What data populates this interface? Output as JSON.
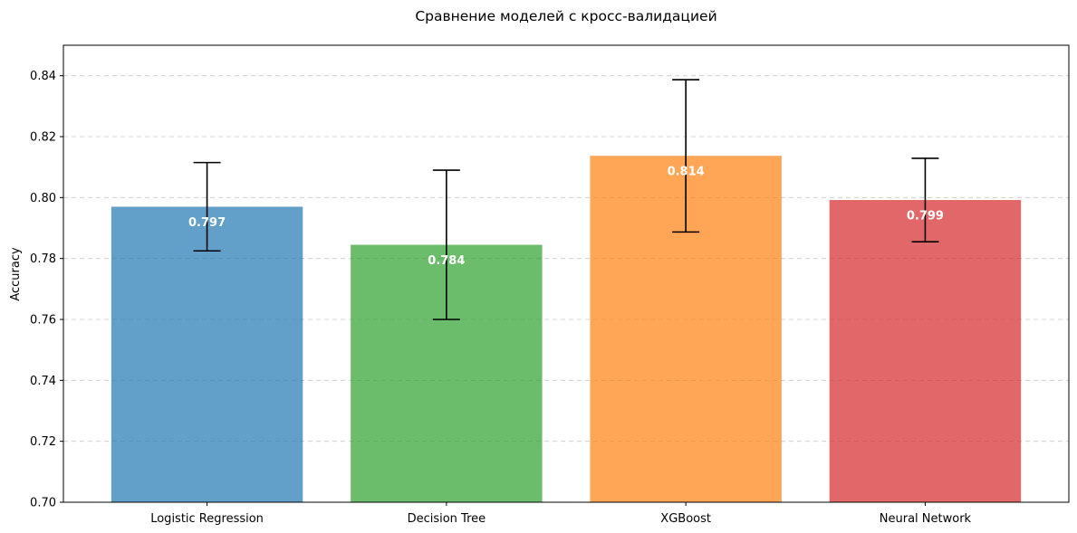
{
  "chart_data": {
    "type": "bar",
    "title": "Сравнение моделей с кросс-валидацией",
    "xlabel": "",
    "ylabel": "Accuracy",
    "ylim": [
      0.7,
      0.85
    ],
    "yticks": [
      "0.70",
      "0.72",
      "0.74",
      "0.76",
      "0.78",
      "0.80",
      "0.82",
      "0.84"
    ],
    "grid": "y-dashed",
    "categories": [
      "Logistic Regression",
      "Decision Tree",
      "XGBoost",
      "Neural Network"
    ],
    "values": [
      0.797,
      0.7845,
      0.8137,
      0.7992
    ],
    "errors": [
      0.0145,
      0.0245,
      0.025,
      0.0137
    ],
    "value_labels": [
      "0.797",
      "0.784",
      "0.814",
      "0.799"
    ],
    "colors": [
      "#1f77b4",
      "#2ca02c",
      "#ff7f0e",
      "#d62728"
    ],
    "bar_opacity": 0.7
  }
}
